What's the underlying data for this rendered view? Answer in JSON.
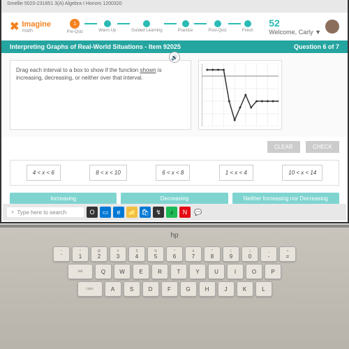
{
  "browser": {
    "tab_text": "Smellie 5020-231851 3(A) Algebra I Honors 1200320"
  },
  "header": {
    "logo_text": "Imagine",
    "logo_sub": "math",
    "steps": [
      {
        "label": "Pre-Quiz"
      },
      {
        "label": "Warm Up"
      },
      {
        "label": "Guided Learning"
      },
      {
        "label": "Practice"
      },
      {
        "label": "Post-Quiz"
      },
      {
        "label": "Finish"
      }
    ],
    "coins": "52",
    "welcome": "Welcome, Carly ▼"
  },
  "qbar": {
    "title": "Interpreting Graphs of Real-World Situations - Item 92025",
    "counter": "Question 6 of 7"
  },
  "instruction": {
    "text_a": "Drag each interval to a box to show if the function ",
    "text_u": "shown",
    "text_b": " is increasing, decreasing, or neither over that interval."
  },
  "buttons": {
    "clear": "CLEAR",
    "check": "CHECK"
  },
  "intervals": [
    "4 < x < 6",
    "8 < x < 10",
    "6 < x < 8",
    "1 < x < 4",
    "10 < x < 14"
  ],
  "zones": {
    "inc": "Increasing",
    "dec": "Decreasing",
    "neither": "Neither Increasing nor Decreasing"
  },
  "taskbar": {
    "search": "Type here to search"
  },
  "graph": {
    "xlim": [
      0,
      14
    ],
    "ylim": [
      -16,
      4
    ],
    "grid_color": "#e0e0e0",
    "axis_color": "#888",
    "line_color": "#333",
    "points": [
      [
        1,
        2
      ],
      [
        2,
        2
      ],
      [
        3,
        2
      ],
      [
        4,
        2
      ],
      [
        5,
        -8
      ],
      [
        6,
        -14
      ],
      [
        7,
        -10
      ],
      [
        8,
        -6
      ],
      [
        9,
        -10
      ],
      [
        10,
        -8
      ],
      [
        11,
        -8
      ],
      [
        12,
        -8
      ],
      [
        13,
        -8
      ],
      [
        14,
        -8
      ]
    ]
  },
  "laptop": {
    "brand": "hp"
  },
  "keys": {
    "row1": [
      [
        "~",
        "`"
      ],
      [
        "!",
        "1"
      ],
      [
        "@",
        "2"
      ],
      [
        "#",
        "3"
      ],
      [
        "$",
        "4"
      ],
      [
        "%",
        "5"
      ],
      [
        "^",
        "6"
      ],
      [
        "&",
        "7"
      ],
      [
        "*",
        "8"
      ],
      [
        "(",
        "9"
      ],
      [
        ")",
        "0"
      ],
      [
        "_",
        "-"
      ],
      [
        "+",
        "="
      ]
    ],
    "row2": [
      "Q",
      "W",
      "E",
      "R",
      "T",
      "Y",
      "U",
      "I",
      "O",
      "P"
    ],
    "row3": [
      "A",
      "S",
      "D",
      "F",
      "G",
      "H",
      "J",
      "K",
      "L"
    ]
  },
  "colors": {
    "teal": "#25a5a0",
    "orange": "#f58220",
    "ltteal": "#7fd4d0"
  }
}
